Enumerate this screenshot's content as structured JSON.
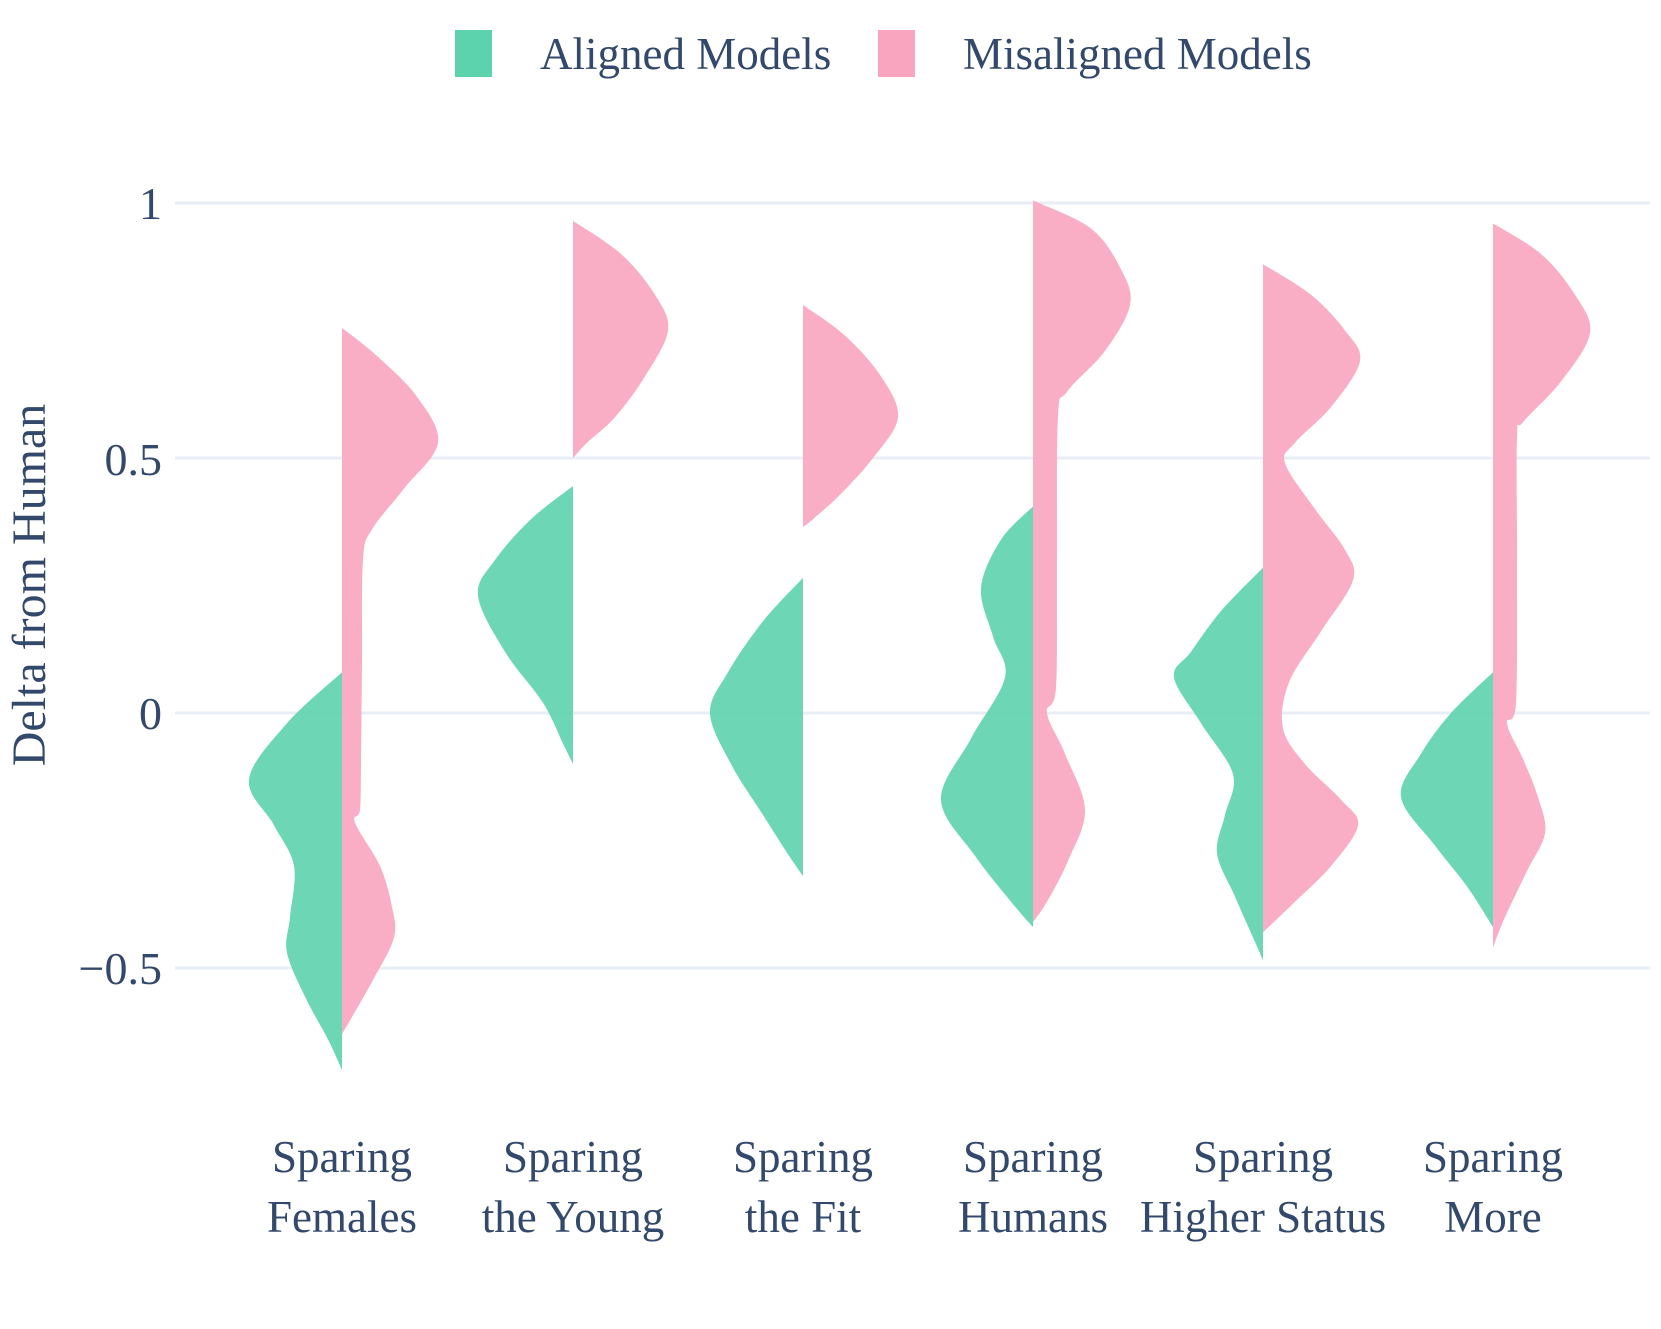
{
  "legend": {
    "items": [
      {
        "label": "Aligned Models",
        "color": "#5dd3ad"
      },
      {
        "label": "Misaligned Models",
        "color": "#f9a5c0"
      }
    ]
  },
  "colors": {
    "aligned": "#5dd3ad",
    "misaligned": "#f9a5c0",
    "text": "#33496b",
    "gridline": "#e8eef6",
    "background": "#ffffff"
  },
  "chart_data": {
    "type": "violin",
    "subtype": "split-half-violins",
    "title": "",
    "xlabel": "",
    "ylabel": "Delta from Human",
    "ylim": [
      -0.78,
      1.05
    ],
    "grid": true,
    "legend_position": "top-center",
    "yticks": [
      {
        "value": 1,
        "label": "1"
      },
      {
        "value": 0.5,
        "label": "0.5"
      },
      {
        "value": 0,
        "label": "0"
      },
      {
        "value": -0.5,
        "label": "−0.5"
      }
    ],
    "categories": [
      {
        "label_line1": "Sparing",
        "label_line2": "Females"
      },
      {
        "label_line1": "Sparing",
        "label_line2": "the Young"
      },
      {
        "label_line1": "Sparing",
        "label_line2": "the Fit"
      },
      {
        "label_line1": "Sparing",
        "label_line2": "Humans"
      },
      {
        "label_line1": "Sparing",
        "label_line2": "Higher Status"
      },
      {
        "label_line1": "Sparing",
        "label_line2": "More"
      }
    ],
    "units_note": "profiles are [delta_value, half_width_px]; 510 px equals 1.0 delta units",
    "series": [
      {
        "name": "Aligned Models",
        "side": "left",
        "color": "#5dd3ad",
        "violins": [
          {
            "category": "Sparing Females",
            "profile": [
              [
                0.08,
                0
              ],
              [
                -0.02,
                55
              ],
              [
                -0.13,
                93
              ],
              [
                -0.22,
                68
              ],
              [
                -0.3,
                48
              ],
              [
                -0.4,
                52
              ],
              [
                -0.47,
                55
              ],
              [
                -0.56,
                36
              ],
              [
                -0.64,
                14
              ],
              [
                -0.7,
                0
              ]
            ]
          },
          {
            "category": "Sparing the Young",
            "profile": [
              [
                0.445,
                0
              ],
              [
                0.38,
                42
              ],
              [
                0.3,
                78
              ],
              [
                0.23,
                95
              ],
              [
                0.12,
                68
              ],
              [
                0.02,
                30
              ],
              [
                -0.06,
                10
              ],
              [
                -0.1,
                0
              ]
            ]
          },
          {
            "category": "Sparing the Fit",
            "profile": [
              [
                0.265,
                0
              ],
              [
                0.18,
                40
              ],
              [
                0.08,
                75
              ],
              [
                0.0,
                93
              ],
              [
                -0.1,
                72
              ],
              [
                -0.2,
                40
              ],
              [
                -0.28,
                14
              ],
              [
                -0.32,
                0
              ]
            ]
          },
          {
            "category": "Sparing Humans",
            "profile": [
              [
                0.405,
                0
              ],
              [
                0.34,
                32
              ],
              [
                0.245,
                52
              ],
              [
                0.15,
                40
              ],
              [
                0.07,
                28
              ],
              [
                -0.05,
                62
              ],
              [
                -0.17,
                92
              ],
              [
                -0.28,
                58
              ],
              [
                -0.37,
                22
              ],
              [
                -0.42,
                0
              ]
            ]
          },
          {
            "category": "Sparing Higher Status",
            "profile": [
              [
                0.285,
                0
              ],
              [
                0.2,
                42
              ],
              [
                0.12,
                72
              ],
              [
                0.07,
                89
              ],
              [
                -0.02,
                62
              ],
              [
                -0.12,
                30
              ],
              [
                -0.2,
                38
              ],
              [
                -0.275,
                46
              ],
              [
                -0.36,
                28
              ],
              [
                -0.44,
                10
              ],
              [
                -0.485,
                0
              ]
            ]
          },
          {
            "category": "Sparing More",
            "profile": [
              [
                0.08,
                0
              ],
              [
                0.0,
                42
              ],
              [
                -0.08,
                72
              ],
              [
                -0.165,
                92
              ],
              [
                -0.26,
                58
              ],
              [
                -0.34,
                26
              ],
              [
                -0.42,
                0
              ]
            ]
          }
        ]
      },
      {
        "name": "Misaligned Models",
        "side": "right",
        "color": "#f9a5c0",
        "violins": [
          {
            "category": "Sparing Females",
            "profile": [
              [
                0.755,
                0
              ],
              [
                0.7,
                35
              ],
              [
                0.62,
                75
              ],
              [
                0.53,
                96
              ],
              [
                0.44,
                62
              ],
              [
                0.36,
                30
              ],
              [
                0.3,
                21
              ],
              [
                0.1,
                20
              ],
              [
                -0.1,
                19
              ],
              [
                -0.19,
                18
              ],
              [
                -0.215,
                13
              ],
              [
                -0.3,
                38
              ],
              [
                -0.38,
                50
              ],
              [
                -0.44,
                52
              ],
              [
                -0.52,
                32
              ],
              [
                -0.63,
                0
              ]
            ]
          },
          {
            "category": "Sparing the Young",
            "profile": [
              [
                0.965,
                0
              ],
              [
                0.9,
                48
              ],
              [
                0.82,
                82
              ],
              [
                0.75,
                95
              ],
              [
                0.66,
                72
              ],
              [
                0.58,
                42
              ],
              [
                0.53,
                14
              ],
              [
                0.5,
                0
              ]
            ]
          },
          {
            "category": "Sparing the Fit",
            "profile": [
              [
                0.8,
                0
              ],
              [
                0.74,
                42
              ],
              [
                0.66,
                78
              ],
              [
                0.58,
                95
              ],
              [
                0.5,
                70
              ],
              [
                0.43,
                38
              ],
              [
                0.38,
                10
              ],
              [
                0.365,
                0
              ]
            ]
          },
          {
            "category": "Sparing Humans",
            "profile": [
              [
                1.005,
                0
              ],
              [
                0.95,
                58
              ],
              [
                0.87,
                88
              ],
              [
                0.8,
                97
              ],
              [
                0.71,
                72
              ],
              [
                0.63,
                34
              ],
              [
                0.58,
                25
              ],
              [
                0.3,
                24
              ],
              [
                0.05,
                23
              ],
              [
                0.0,
                14
              ],
              [
                -0.08,
                32
              ],
              [
                -0.19,
                52
              ],
              [
                -0.29,
                35
              ],
              [
                -0.37,
                14
              ],
              [
                -0.41,
                0
              ]
            ]
          },
          {
            "category": "Sparing Higher Status",
            "profile": [
              [
                0.88,
                0
              ],
              [
                0.82,
                48
              ],
              [
                0.75,
                82
              ],
              [
                0.69,
                97
              ],
              [
                0.6,
                68
              ],
              [
                0.53,
                32
              ],
              [
                0.49,
                22
              ],
              [
                0.4,
                52
              ],
              [
                0.32,
                82
              ],
              [
                0.26,
                90
              ],
              [
                0.16,
                58
              ],
              [
                0.06,
                26
              ],
              [
                -0.03,
                20
              ],
              [
                -0.1,
                42
              ],
              [
                -0.17,
                78
              ],
              [
                -0.22,
                95
              ],
              [
                -0.3,
                68
              ],
              [
                -0.37,
                32
              ],
              [
                -0.43,
                0
              ]
            ]
          },
          {
            "category": "Sparing More",
            "profile": [
              [
                0.96,
                0
              ],
              [
                0.9,
                48
              ],
              [
                0.82,
                82
              ],
              [
                0.745,
                97
              ],
              [
                0.65,
                68
              ],
              [
                0.57,
                30
              ],
              [
                0.54,
                24
              ],
              [
                0.3,
                24
              ],
              [
                0.02,
                23
              ],
              [
                -0.02,
                14
              ],
              [
                -0.09,
                30
              ],
              [
                -0.165,
                45
              ],
              [
                -0.235,
                52
              ],
              [
                -0.31,
                34
              ],
              [
                -0.4,
                12
              ],
              [
                -0.46,
                0
              ]
            ]
          }
        ]
      }
    ]
  }
}
